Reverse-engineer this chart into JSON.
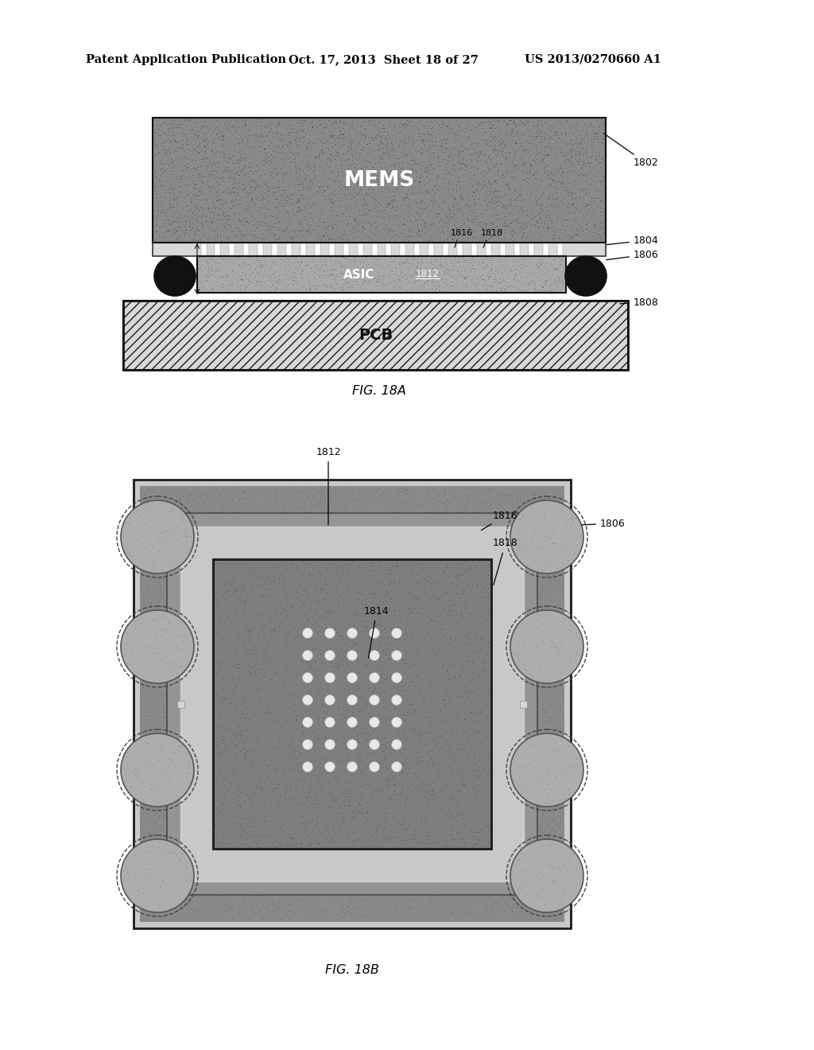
{
  "page_header_left": "Patent Application Publication",
  "page_header_mid": "Oct. 17, 2013  Sheet 18 of 27",
  "page_header_right": "US 2013/0270660 A1",
  "fig_a_label": "FIG. 18A",
  "fig_b_label": "FIG. 18B",
  "bg_color": "#ffffff",
  "label_1802": "1802",
  "label_1804": "1804",
  "label_1806": "1806",
  "label_1808": "1808",
  "label_1812": "1812",
  "label_1814": "1814",
  "label_1816": "1816",
  "label_1818": "1818",
  "label_MEMS": "MEMS",
  "label_ASIC": "ASIC",
  "label_PCB": "PCB",
  "mems_color": "#888888",
  "asic_color": "#aaaaaa",
  "pcb_color": "#dddddd",
  "black": "#000000",
  "white": "#ffffff"
}
